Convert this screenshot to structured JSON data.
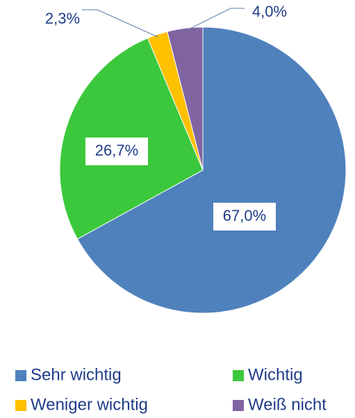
{
  "chart_data": {
    "type": "pie",
    "categories": [
      "Sehr wichtig",
      "Wichtig",
      "Weniger wichtig",
      "Weiß nicht"
    ],
    "values": [
      67.0,
      26.7,
      2.3,
      4.0
    ],
    "value_labels": [
      "67,0%",
      "26,7%",
      "2,3%",
      "4,0%"
    ],
    "colors": [
      "#4f81bd",
      "#3cc83c",
      "#ffc000",
      "#8064a2"
    ],
    "legend": "bottom"
  }
}
